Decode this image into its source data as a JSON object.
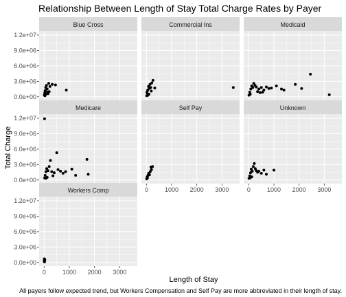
{
  "chart_data": {
    "type": "scatter",
    "title": "Relationship Between Length of Stay Total Charge Rates by Payer",
    "xlabel": "Length of Stay",
    "ylabel": "Total Charge",
    "caption": "All payers follow expected trend, but Workers Compensation and Self Pay are more abbreviated in their length of stay.",
    "xlim": [
      -200,
      3700
    ],
    "ylim": [
      -700000,
      12800000
    ],
    "x_ticks": [
      0,
      1000,
      2000,
      3000
    ],
    "x_tick_labels": [
      "0",
      "1000",
      "2000",
      "3000"
    ],
    "y_ticks": [
      0,
      3000000,
      6000000,
      9000000,
      12000000
    ],
    "y_tick_labels": [
      "0.0e+00",
      "3.0e+06",
      "6.0e+06",
      "9.0e+06",
      "1.2e+07"
    ],
    "grid": true,
    "layout": "facet_wrap, 3 columns",
    "point_color": "#000000",
    "panel_background": "#ebebeb",
    "strip_background": "#d9d9d9",
    "panels": [
      {
        "name": "Blue Cross",
        "points": [
          [
            10,
            300000
          ],
          [
            25,
            800000
          ],
          [
            40,
            1200000
          ],
          [
            60,
            1800000
          ],
          [
            90,
            2200000
          ],
          [
            120,
            1500000
          ],
          [
            180,
            2600000
          ],
          [
            230,
            2000000
          ],
          [
            320,
            2400000
          ],
          [
            130,
            900000
          ],
          [
            70,
            500000
          ],
          [
            200,
            1000000
          ],
          [
            150,
            600000
          ],
          [
            450,
            2300000
          ],
          [
            880,
            1300000
          ],
          [
            30,
            200000
          ],
          [
            15,
            400000
          ]
        ]
      },
      {
        "name": "Commercial Ins",
        "points": [
          [
            10,
            200000
          ],
          [
            30,
            700000
          ],
          [
            50,
            1300000
          ],
          [
            80,
            2000000
          ],
          [
            110,
            1600000
          ],
          [
            140,
            2400000
          ],
          [
            170,
            1800000
          ],
          [
            210,
            2700000
          ],
          [
            260,
            3200000
          ],
          [
            190,
            1100000
          ],
          [
            100,
            500000
          ],
          [
            330,
            1700000
          ],
          [
            60,
            300000
          ],
          [
            20,
            900000
          ],
          [
            3450,
            1800000
          ]
        ]
      },
      {
        "name": "Medicaid",
        "points": [
          [
            10,
            300000
          ],
          [
            40,
            900000
          ],
          [
            80,
            1500000
          ],
          [
            120,
            2100000
          ],
          [
            160,
            1800000
          ],
          [
            200,
            2600000
          ],
          [
            250,
            2200000
          ],
          [
            300,
            1900000
          ],
          [
            400,
            1500000
          ],
          [
            500,
            1800000
          ],
          [
            600,
            1300000
          ],
          [
            700,
            1900000
          ],
          [
            800,
            1600000
          ],
          [
            900,
            1700000
          ],
          [
            1100,
            2100000
          ],
          [
            1300,
            1500000
          ],
          [
            1400,
            1300000
          ],
          [
            1850,
            2400000
          ],
          [
            2100,
            1600000
          ],
          [
            2450,
            4400000
          ],
          [
            3200,
            400000
          ],
          [
            60,
            500000
          ],
          [
            350,
            1000000
          ],
          [
            450,
            800000
          ],
          [
            550,
            900000
          ]
        ]
      },
      {
        "name": "Medicare",
        "points": [
          [
            15,
            11900000
          ],
          [
            20,
            400000
          ],
          [
            40,
            900000
          ],
          [
            70,
            1600000
          ],
          [
            100,
            2200000
          ],
          [
            150,
            1800000
          ],
          [
            200,
            2600000
          ],
          [
            250,
            3800000
          ],
          [
            300,
            1600000
          ],
          [
            400,
            1400000
          ],
          [
            500,
            5300000
          ],
          [
            550,
            2000000
          ],
          [
            650,
            1700000
          ],
          [
            750,
            1300000
          ],
          [
            850,
            1600000
          ],
          [
            1100,
            2100000
          ],
          [
            1250,
            900000
          ],
          [
            1700,
            4000000
          ],
          [
            1750,
            1100000
          ],
          [
            120,
            500000
          ],
          [
            350,
            800000
          ],
          [
            60,
            300000
          ]
        ]
      },
      {
        "name": "Self Pay",
        "points": [
          [
            10,
            200000
          ],
          [
            30,
            600000
          ],
          [
            60,
            900000
          ],
          [
            90,
            1300000
          ],
          [
            120,
            1000000
          ],
          [
            150,
            1600000
          ],
          [
            180,
            2500000
          ],
          [
            200,
            2000000
          ],
          [
            240,
            2600000
          ],
          [
            40,
            400000
          ]
        ]
      },
      {
        "name": "Unknown",
        "points": [
          [
            10,
            300000
          ],
          [
            40,
            800000
          ],
          [
            70,
            1400000
          ],
          [
            100,
            2100000
          ],
          [
            140,
            1700000
          ],
          [
            180,
            2600000
          ],
          [
            220,
            3200000
          ],
          [
            260,
            2200000
          ],
          [
            300,
            1800000
          ],
          [
            350,
            1500000
          ],
          [
            400,
            1700000
          ],
          [
            500,
            1300000
          ],
          [
            600,
            1900000
          ],
          [
            700,
            1100000
          ],
          [
            1000,
            1900000
          ],
          [
            120,
            600000
          ],
          [
            60,
            400000
          ]
        ]
      },
      {
        "name": "Workers Comp",
        "points": [
          [
            5,
            200000
          ],
          [
            10,
            400000
          ],
          [
            15,
            600000
          ],
          [
            20,
            300000
          ],
          [
            25,
            500000
          ],
          [
            8,
            700000
          ],
          [
            12,
            100000
          ]
        ]
      }
    ]
  }
}
